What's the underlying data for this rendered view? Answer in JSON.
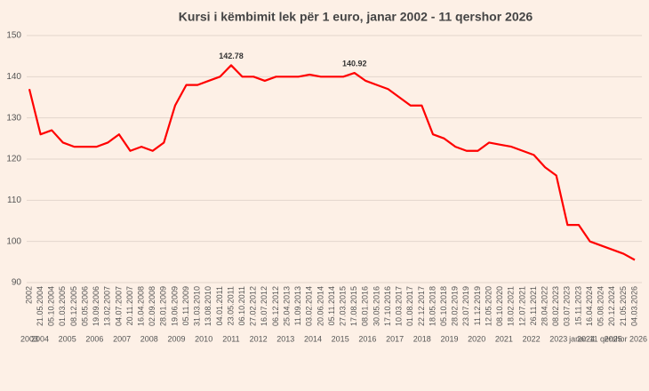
{
  "chart_data": {
    "type": "line",
    "title": "Kursi i këmbimit lek për 1 euro, janar 2002 - 11 qershor 2026",
    "categories": [
      "2002",
      "21.05.2004",
      "05.10.2004",
      "01.03.2005",
      "08.12.2005",
      "05.05.2006",
      "19.09.2006",
      "13.02.2007",
      "04.07.2007",
      "20.11.2007",
      "16.04.2008",
      "02.09.2008",
      "28.01.2009",
      "19.06.2009",
      "05.11.2009",
      "31.03.2010",
      "13.08.2010",
      "04.01.2011",
      "23.05.2011",
      "06.10.2011",
      "27.02.2012",
      "16.07.2012",
      "06.12.2012",
      "25.04.2013",
      "11.09.2013",
      "03.02.2014",
      "20.06.2014",
      "05.11.2014",
      "27.03.2015",
      "17.08.2015",
      "08.01.2016",
      "30.05.2016",
      "17.10.2016",
      "10.03.2017",
      "01.08.2017",
      "22.12.2017",
      "18.05.2018",
      "05.10.2018",
      "28.02.2019",
      "23.07.2019",
      "11.12.2019",
      "12.05.2020",
      "08.10.2020",
      "18.02.2021",
      "12.07.2021",
      "26.11.2021",
      "28.04.2022",
      "08.02.2023",
      "03.07.2023",
      "15.11.2023",
      "16.04.2024",
      "05.08.2024",
      "20.12.2024",
      "21.05.2025",
      "04.03.2026"
    ],
    "values": [
      137,
      126,
      127,
      124,
      123,
      123,
      123,
      124,
      126,
      122,
      123,
      122,
      124,
      133,
      138,
      138,
      139,
      140,
      142.78,
      140,
      140,
      139,
      140,
      140,
      140,
      140.5,
      140,
      140,
      140,
      140.92,
      139,
      138,
      137,
      135,
      133,
      133,
      126,
      125,
      123,
      122,
      122,
      124,
      123.5,
      123,
      122,
      121,
      118,
      116,
      104,
      104,
      100,
      99,
      98,
      97,
      95.5
    ],
    "value_labels": [
      null,
      null,
      null,
      null,
      null,
      null,
      null,
      null,
      null,
      null,
      null,
      null,
      null,
      null,
      null,
      null,
      null,
      null,
      "142.78",
      null,
      null,
      null,
      null,
      null,
      null,
      null,
      null,
      null,
      null,
      "140.92",
      null,
      null,
      null,
      null,
      null,
      null,
      null,
      null,
      null,
      null,
      null,
      null,
      null,
      null,
      null,
      null,
      null,
      null,
      null,
      null,
      null,
      null,
      null,
      null,
      null
    ],
    "color": "#ff0000",
    "year_labels": [
      "2003",
      "2004",
      "2005",
      "2006",
      "2007",
      "2008",
      "2009",
      "2010",
      "2011",
      "2012",
      "2013",
      "2014",
      "2015",
      "2016",
      "2017",
      "2018",
      "2019",
      "2020",
      "2021",
      "2022",
      "2023",
      "2024",
      "2025",
      "janar-11 qershor 2026"
    ],
    "ylim": [
      90,
      150
    ],
    "yticks": [
      90,
      100,
      110,
      120,
      130,
      140,
      150
    ],
    "grid": true
  }
}
